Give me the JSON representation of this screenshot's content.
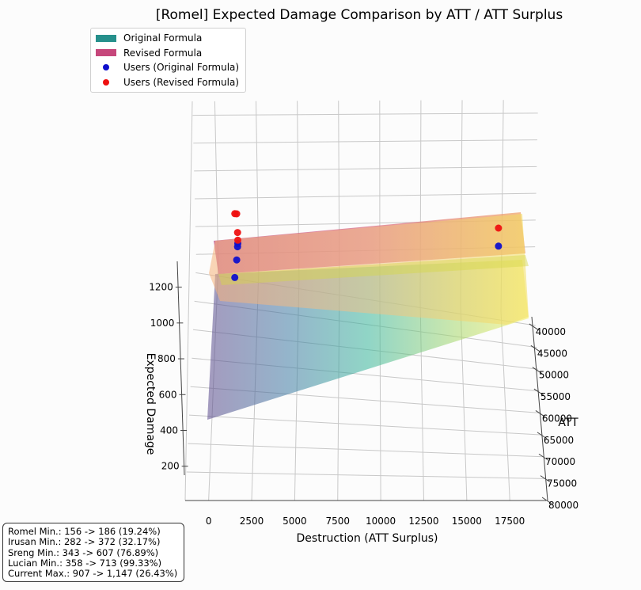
{
  "chart_data": {
    "type": "surface3d",
    "title": "[Romel] Expected Damage Comparison by ATT / ATT Surplus",
    "xlabel": "Destruction (ATT Surplus)",
    "ylabel": "ATT",
    "zlabel": "Expected Damage",
    "x_ticks": [
      "0",
      "2500",
      "5000",
      "7500",
      "10000",
      "12500",
      "15000",
      "17500"
    ],
    "y_ticks": [
      "40000",
      "45000",
      "50000",
      "55000",
      "60000",
      "65000",
      "70000",
      "75000",
      "80000"
    ],
    "z_ticks": [
      "200",
      "400",
      "600",
      "800",
      "1000",
      "1200"
    ],
    "xlim": [
      0,
      18000
    ],
    "ylim": [
      38000,
      80000
    ],
    "zlim": [
      150,
      1300
    ],
    "legend_placement": "top-left",
    "series": [
      {
        "name": "Original Formula",
        "kind": "surface",
        "colormap": "viridis",
        "color": "#26908c"
      },
      {
        "name": "Revised Formula",
        "kind": "surface",
        "colormap": "plasma",
        "color": "#c6477b"
      },
      {
        "name": "Users (Original Formula)",
        "kind": "scatter",
        "color": "#1010cc",
        "points": [
          {
            "x": 156,
            "y": 38000,
            "z": 880
          },
          {
            "x": 282,
            "y": 38000,
            "z": 960
          },
          {
            "x": 343,
            "y": 38000,
            "z": 1020
          },
          {
            "x": 358,
            "y": 38000,
            "z": 1035
          },
          {
            "x": 17800,
            "y": 38000,
            "z": 1100
          }
        ]
      },
      {
        "name": "Users (Revised Formula)",
        "kind": "scatter",
        "color": "#ee1111",
        "points": [
          {
            "x": 156,
            "y": 38000,
            "z": 1170
          },
          {
            "x": 282,
            "y": 38000,
            "z": 1170
          },
          {
            "x": 343,
            "y": 38000,
            "z": 1085
          },
          {
            "x": 358,
            "y": 38000,
            "z": 1050
          },
          {
            "x": 17800,
            "y": 38000,
            "z": 1230
          }
        ]
      }
    ]
  },
  "stats_box": {
    "lines": [
      "Romel Min.: 156 -> 186 (19.24%)",
      "Irusan Min.: 282 -> 372 (32.17%)",
      "Sreng Min.: 343 -> 607 (76.89%)",
      "Lucian Min.: 358 -> 713 (99.33%)",
      "Current Max.: 907 -> 1,147 (26.43%)"
    ]
  }
}
